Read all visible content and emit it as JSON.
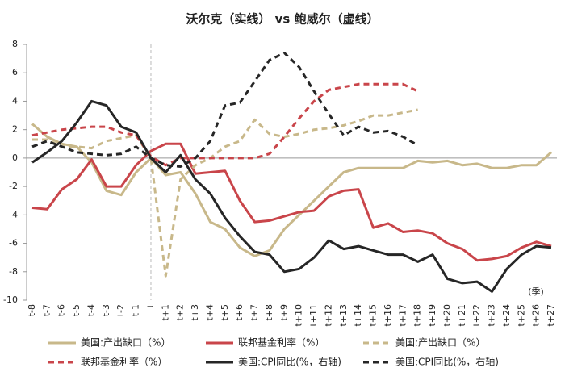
{
  "chart_data": {
    "type": "line",
    "title": "沃尔克（实线） vs 鲍威尔（虚线）",
    "annotation": "(季)",
    "categories": [
      "t-8",
      "t-7",
      "t-6",
      "t-5",
      "t-4",
      "t-3",
      "t-2",
      "t-1",
      "t",
      "t+1",
      "t+2",
      "t+3",
      "t+4",
      "t+5",
      "t+6",
      "t+7",
      "t+8",
      "t+9",
      "t+10",
      "t+11",
      "t+12",
      "t+13",
      "t+14",
      "t+15",
      "t+16",
      "t+17",
      "t+18",
      "t+19",
      "t+20",
      "t+21",
      "t+22",
      "t+23",
      "t+24",
      "t+25",
      "t+26",
      "t+27"
    ],
    "ylim": [
      -10,
      8
    ],
    "yticks": [
      -10,
      -8,
      -6,
      -4,
      -2,
      0,
      2,
      4,
      6,
      8
    ],
    "series": [
      {
        "name": "美国:产出缺口（%）",
        "color": "#c8b88a",
        "dashed": false,
        "values": [
          2.4,
          1.5,
          1.0,
          0.8,
          -0.3,
          -2.3,
          -2.6,
          -1.0,
          0,
          -1.2,
          -1.0,
          -2.5,
          -4.5,
          -5.0,
          -6.3,
          -6.9,
          -6.5,
          -5.0,
          -4.0,
          -3.0,
          -2.0,
          -1.0,
          -0.7,
          -0.7,
          -0.7,
          -0.7,
          -0.2,
          -0.3,
          -0.2,
          -0.5,
          -0.4,
          -0.7,
          -0.7,
          -0.5,
          -0.5,
          0.4
        ]
      },
      {
        "name": "联邦基金利率（%）",
        "color": "#c9454a",
        "dashed": false,
        "values": [
          -3.5,
          -3.6,
          -2.2,
          -1.5,
          -0.1,
          -2.0,
          -2.0,
          -0.5,
          0.5,
          1.0,
          1.0,
          -1.1,
          -1.0,
          -0.9,
          -3.0,
          -4.5,
          -4.4,
          -4.1,
          -3.8,
          -3.7,
          -2.7,
          -2.3,
          -2.2,
          -4.9,
          -4.6,
          -5.2,
          -5.1,
          -5.3,
          -6.0,
          -6.4,
          -7.2,
          -7.1,
          -6.9,
          -6.3,
          -5.9,
          -6.2
        ]
      },
      {
        "name": "美国:产出缺口（%）",
        "color": "#c8b88a",
        "dashed": true,
        "values": [
          1.3,
          1.3,
          0.8,
          0.8,
          0.7,
          1.2,
          1.4,
          1.6,
          0,
          -8.3,
          -1.5,
          -0.5,
          0,
          0.8,
          1.2,
          2.7,
          1.7,
          1.5,
          1.7,
          2.0,
          2.1,
          2.3,
          2.6,
          3.0,
          3.0,
          3.2,
          3.4,
          null,
          null,
          null,
          null,
          null,
          null,
          null,
          null,
          null
        ]
      },
      {
        "name": "联邦基金利率（%）",
        "color": "#c9454a",
        "dashed": true,
        "values": [
          1.6,
          1.8,
          2.0,
          2.1,
          2.2,
          2.2,
          1.8,
          1.6,
          0.1,
          -0.5,
          0,
          0,
          0,
          0,
          0,
          0,
          0.3,
          1.5,
          2.8,
          4.0,
          4.8,
          5.0,
          5.2,
          5.2,
          5.2,
          5.2,
          4.7,
          null,
          null,
          null,
          null,
          null,
          null,
          null,
          null,
          null
        ]
      },
      {
        "name": "美国:CPI同比(%，右轴)",
        "color": "#262626",
        "dashed": false,
        "values": [
          -0.3,
          0.4,
          1.2,
          2.5,
          4.0,
          3.7,
          2.2,
          1.8,
          0,
          -1.0,
          0.2,
          -1.5,
          -2.5,
          -4.2,
          -5.5,
          -6.6,
          -6.8,
          -8.0,
          -7.8,
          -7.0,
          -5.8,
          -6.4,
          -6.2,
          -6.5,
          -6.8,
          -6.8,
          -7.3,
          -6.8,
          -8.5,
          -8.8,
          -8.7,
          -9.4,
          -7.8,
          -6.8,
          -6.2,
          -6.3
        ]
      },
      {
        "name": "美国:CPI同比(%，右轴)",
        "color": "#262626",
        "dashed": true,
        "values": [
          0.8,
          1.2,
          0.8,
          0.4,
          0.3,
          0.2,
          0.3,
          0.8,
          0,
          -0.5,
          -0.6,
          0,
          1.2,
          3.7,
          3.9,
          5.4,
          6.9,
          7.4,
          6.4,
          4.7,
          3.1,
          1.6,
          2.2,
          1.8,
          1.9,
          1.5,
          0.9,
          null,
          null,
          null,
          null,
          null,
          null,
          null,
          null,
          null
        ]
      }
    ]
  }
}
